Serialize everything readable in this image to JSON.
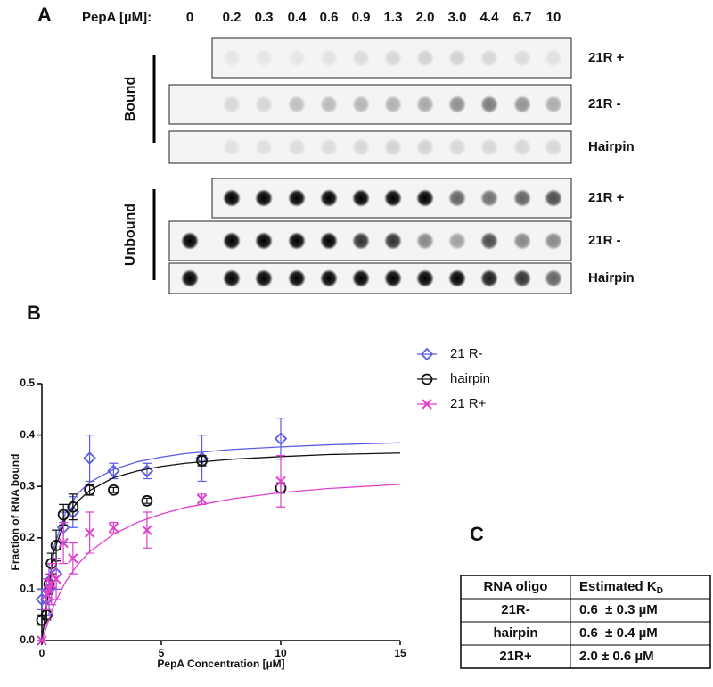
{
  "panel_labels": [
    "A",
    "B",
    "C"
  ],
  "panel_a": {
    "header": "PepA [µM]:",
    "concentrations": [
      "0",
      "0.2",
      "0.3",
      "0.4",
      "0.6",
      "0.9",
      "1.3",
      "2.0",
      "3.0",
      "4.4",
      "6.7",
      "10"
    ],
    "groups": [
      {
        "label": "Bound",
        "rows": [
          "21R +",
          "21R -",
          "Hairpin"
        ]
      },
      {
        "label": "Unbound",
        "rows": [
          "21R +",
          "21R -",
          "Hairpin"
        ]
      }
    ]
  },
  "chart_data": {
    "type": "scatter",
    "x_label": "PepA Concentration [µM]",
    "y_label": "Fraction of RNA bound",
    "x": [
      0,
      0.2,
      0.3,
      0.4,
      0.6,
      0.9,
      1.3,
      2.0,
      3.0,
      4.4,
      6.7,
      10
    ],
    "xlim": [
      0,
      15
    ],
    "xticks": [
      0,
      5,
      10,
      15
    ],
    "ylim": [
      0,
      0.5
    ],
    "yticks": [
      {
        "value": 0,
        "label": "0.0"
      },
      0.1,
      0.2,
      0.3,
      0.4,
      0.5
    ],
    "fit_x": [
      0,
      0.5,
      1,
      1.5,
      2,
      3,
      4,
      5,
      6,
      8,
      10,
      12,
      15
    ],
    "series": [
      {
        "name": "21 R-",
        "color": "#5b5be6",
        "marker": "diamond",
        "values": [
          0.08,
          0.08,
          0.1,
          0.12,
          0.13,
          0.22,
          0.25,
          0.355,
          0.33,
          0.33,
          0.355,
          0.393
        ],
        "errors": [
          0.02,
          0.04,
          0.05,
          0.05,
          0.03,
          0.03,
          0.03,
          0.045,
          0.015,
          0.015,
          0.045,
          0.04
        ],
        "fit_values": [
          0,
          0.182,
          0.25,
          0.286,
          0.308,
          0.333,
          0.348,
          0.357,
          0.364,
          0.372,
          0.377,
          0.381,
          0.385
        ]
      },
      {
        "name": "hairpin",
        "color": "#111111",
        "marker": "circle",
        "values": [
          0.04,
          0.05,
          0.11,
          0.15,
          0.185,
          0.245,
          0.26,
          0.293,
          0.293,
          0.272,
          0.35,
          0.297
        ],
        "errors": [
          0.01,
          0.01,
          0.02,
          0.02,
          0.03,
          0.02,
          0.025,
          0.01,
          0.005,
          0.005,
          0.01,
          0.01
        ],
        "fit_values": [
          0,
          0.173,
          0.238,
          0.271,
          0.292,
          0.317,
          0.33,
          0.339,
          0.345,
          0.353,
          0.358,
          0.362,
          0.365
        ]
      },
      {
        "name": "21 R+",
        "color": "#e040d0",
        "marker": "x",
        "values": [
          0.0,
          0.09,
          0.1,
          0.11,
          0.12,
          0.19,
          0.16,
          0.21,
          0.22,
          0.215,
          0.275,
          0.31
        ],
        "errors": [
          0.0,
          0.03,
          0.03,
          0.04,
          0.04,
          0.04,
          0.03,
          0.04,
          0.01,
          0.035,
          0.01,
          0.05
        ],
        "fit_values": [
          0,
          0.069,
          0.115,
          0.148,
          0.173,
          0.207,
          0.23,
          0.246,
          0.259,
          0.276,
          0.288,
          0.296,
          0.304
        ]
      }
    ]
  },
  "table": {
    "header": [
      {
        "text": "RNA oligo"
      },
      {
        "text": "Estimated K",
        "sub": "D"
      }
    ],
    "rows": [
      [
        "21R-",
        "0.6  ± 0.3 µM"
      ],
      [
        "hairpin",
        "0.6  ± 0.4 µM"
      ],
      [
        "21R+",
        "2.0 ± 0.6 µM"
      ]
    ]
  }
}
